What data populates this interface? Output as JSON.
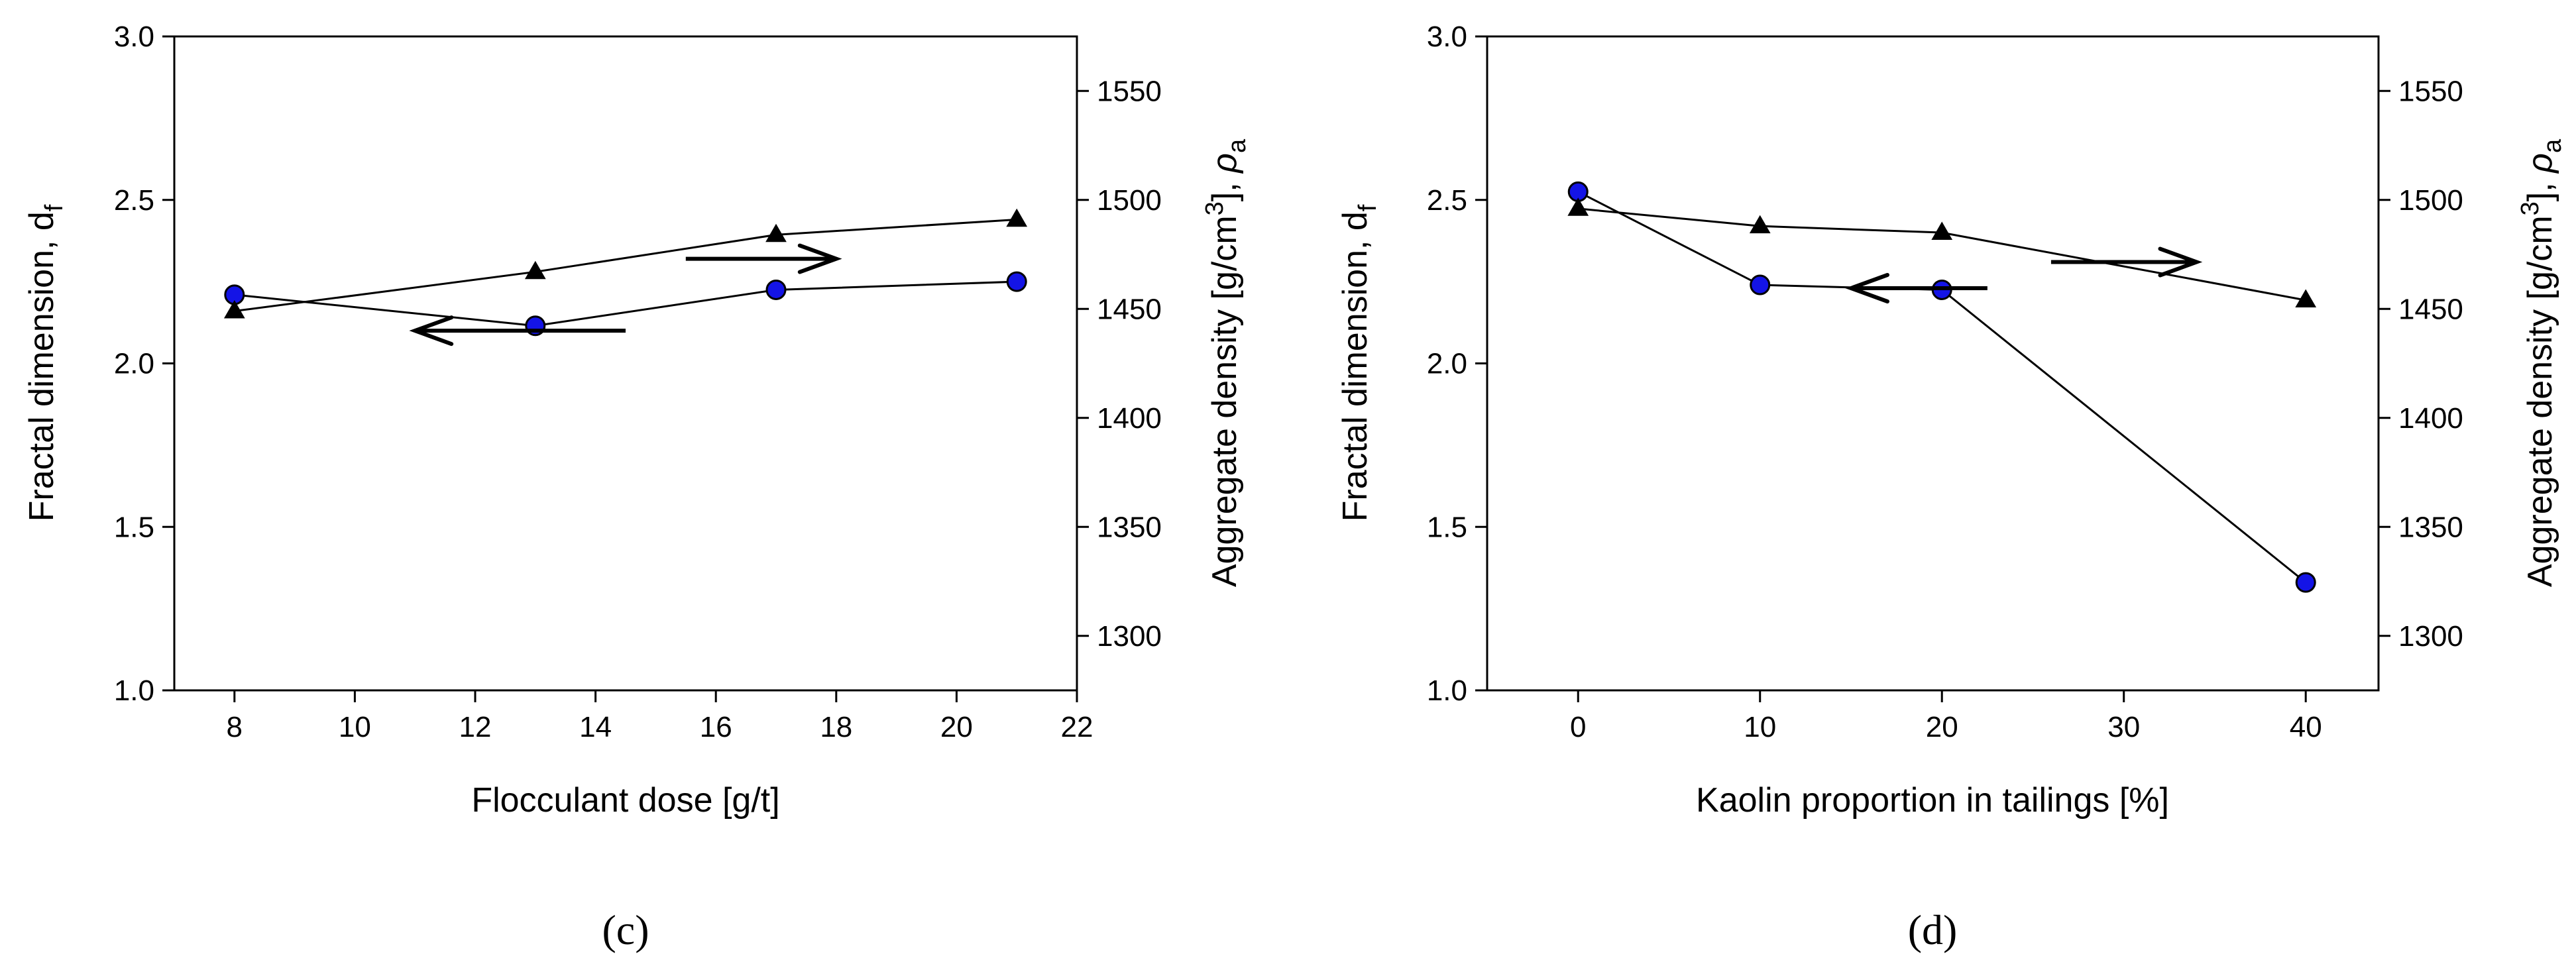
{
  "chart_data": [
    {
      "type": "line",
      "panel_label": "(c)",
      "xlabel": "Flocculant dose [g/t]",
      "ylabel_left": "Fractal dimension, d",
      "ylabel_left_sub": "f",
      "ylabel_right": "Aggregate density [g/cm",
      "ylabel_right_sup": "3",
      "ylabel_right_tail": "], ",
      "ylabel_right_symbol": "ρ",
      "ylabel_right_sub": "a",
      "xlim": [
        7,
        22
      ],
      "xticks": [
        8,
        10,
        12,
        14,
        16,
        18,
        20,
        22
      ],
      "ylim_left": [
        1.0,
        3.0
      ],
      "yticks_left": [
        "1.0",
        "1.5",
        "2.0",
        "2.5",
        "3.0"
      ],
      "ylim_right": [
        1275,
        1575
      ],
      "yticks_right": [
        1300,
        1350,
        1400,
        1450,
        1500,
        1550
      ],
      "series": [
        {
          "name": "Fractal dimension",
          "axis": "left",
          "marker": "circle",
          "x": [
            8,
            13,
            17,
            21
          ],
          "values": [
            2.21,
            2.115,
            2.225,
            2.25
          ]
        },
        {
          "name": "Aggregate density",
          "axis": "right",
          "marker": "triangle",
          "x": [
            8,
            13,
            17,
            21
          ],
          "values": [
            1449,
            1467,
            1484,
            1491
          ]
        }
      ],
      "annotations": [
        {
          "type": "arrow",
          "direction": "left",
          "x1": 14.5,
          "x2": 11.0,
          "y_axis": "left",
          "y": 2.1
        },
        {
          "type": "arrow",
          "direction": "right",
          "x1": 15.5,
          "x2": 18.0,
          "y_axis": "left",
          "y": 2.32
        }
      ]
    },
    {
      "type": "line",
      "panel_label": "(d)",
      "xlabel": "Kaolin proportion in tailings [%]",
      "ylabel_left": "Fractal dimension, d",
      "ylabel_left_sub": "f",
      "ylabel_right": "Aggregate density [g/cm",
      "ylabel_right_sup": "3",
      "ylabel_right_tail": "], ",
      "ylabel_right_symbol": "ρ",
      "ylabel_right_sub": "a",
      "xlim": [
        -5,
        44
      ],
      "xticks": [
        0,
        10,
        20,
        30,
        40
      ],
      "ylim_left": [
        1.0,
        3.0
      ],
      "yticks_left": [
        "1.0",
        "1.5",
        "2.0",
        "2.5",
        "3.0"
      ],
      "ylim_right": [
        1275,
        1575
      ],
      "yticks_right": [
        1300,
        1350,
        1400,
        1450,
        1500,
        1550
      ],
      "series": [
        {
          "name": "Fractal dimension",
          "axis": "left",
          "marker": "circle",
          "x": [
            0,
            10,
            20,
            40
          ],
          "values": [
            2.525,
            2.24,
            2.225,
            1.33
          ]
        },
        {
          "name": "Aggregate density",
          "axis": "right",
          "marker": "triangle",
          "x": [
            0,
            10,
            20,
            40
          ],
          "values": [
            1496,
            1488,
            1485,
            1454
          ]
        }
      ],
      "annotations": [
        {
          "type": "arrow",
          "direction": "left",
          "x1": 22.5,
          "x2": 15.0,
          "y_axis": "left",
          "y": 2.23
        },
        {
          "type": "arrow",
          "direction": "right",
          "x1": 26.0,
          "x2": 34.0,
          "y_axis": "left",
          "y": 2.31
        }
      ]
    }
  ]
}
